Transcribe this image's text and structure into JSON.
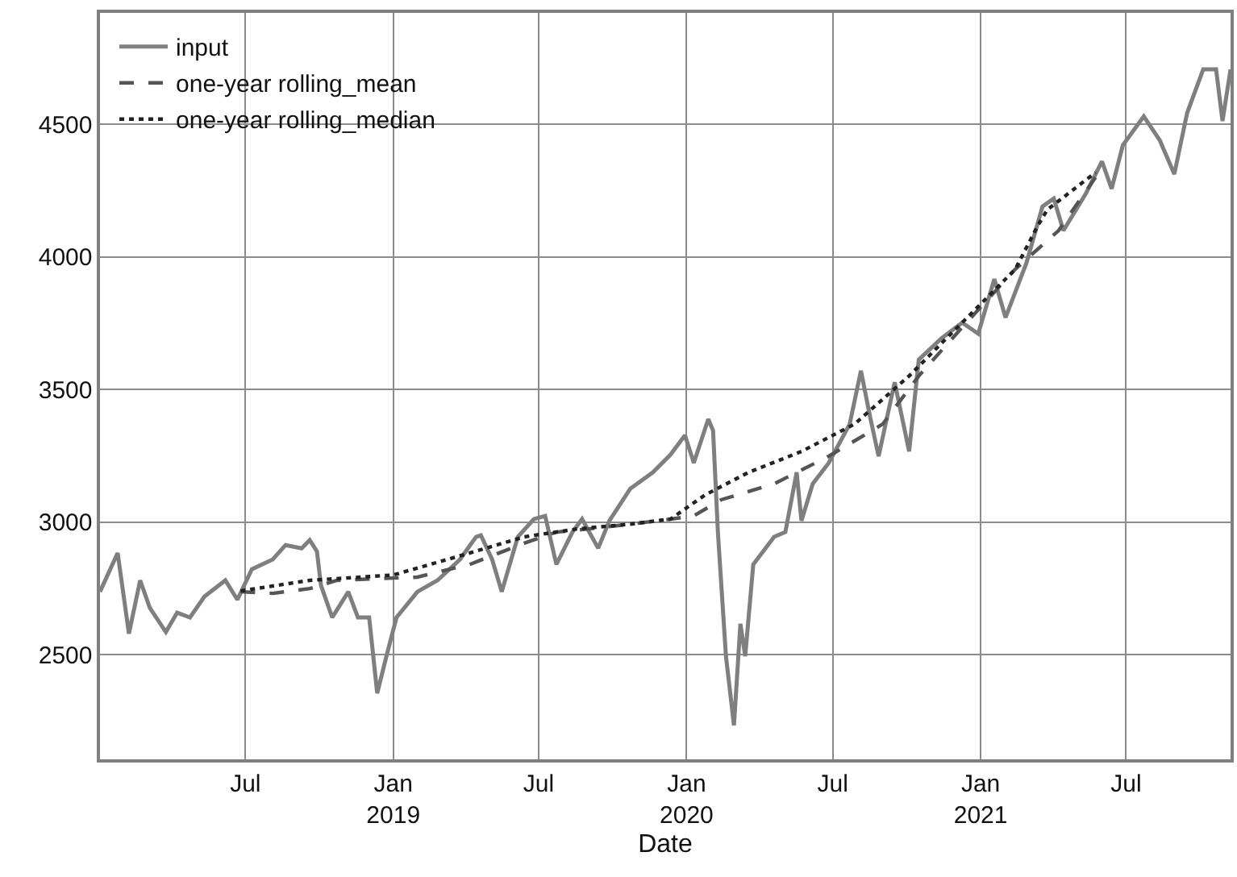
{
  "chart_data": {
    "type": "line",
    "xlabel": "Date",
    "xlim": [
      "2018-01-01",
      "2021-11-08"
    ],
    "ylim": [
      2105,
      4920
    ],
    "xticks": [
      {
        "value": "2018-07-01",
        "label": "Jul"
      },
      {
        "value": "2019-01-01",
        "label": "Jan\n2019"
      },
      {
        "value": "2019-07-01",
        "label": "Jul"
      },
      {
        "value": "2020-01-01",
        "label": "Jan\n2020"
      },
      {
        "value": "2020-07-01",
        "label": "Jul"
      },
      {
        "value": "2021-01-01",
        "label": "Jan\n2021"
      },
      {
        "value": "2021-07-01",
        "label": "Jul"
      }
    ],
    "yticks": [
      2500,
      3000,
      3500,
      4000,
      4500
    ],
    "grid": true,
    "legend": "top left",
    "series": [
      {
        "name": "input",
        "color": "#7f7f7f",
        "line_style": "solid",
        "x": [
          "2018-01-01",
          "2018-01-23",
          "2018-02-06",
          "2018-02-20",
          "2018-03-04",
          "2018-03-24",
          "2018-04-07",
          "2018-04-23",
          "2018-05-11",
          "2018-06-06",
          "2018-06-21",
          "2018-07-09",
          "2018-08-04",
          "2018-08-20",
          "2018-09-09",
          "2018-09-19",
          "2018-09-28",
          "2018-10-03",
          "2018-10-17",
          "2018-11-06",
          "2018-11-18",
          "2018-12-02",
          "2018-12-12",
          "2018-12-22",
          "2019-01-05",
          "2019-01-31",
          "2019-02-25",
          "2019-03-25",
          "2019-04-14",
          "2019-04-20",
          "2019-05-04",
          "2019-05-16",
          "2019-06-05",
          "2019-06-25",
          "2019-07-09",
          "2019-07-23",
          "2019-08-12",
          "2019-08-24",
          "2019-09-13",
          "2019-09-27",
          "2019-10-23",
          "2019-11-20",
          "2019-12-12",
          "2019-12-30",
          "2020-01-10",
          "2020-01-28",
          "2020-02-03",
          "2020-02-09",
          "2020-02-19",
          "2020-02-29",
          "2020-03-08",
          "2020-03-14",
          "2020-03-24",
          "2020-04-19",
          "2020-05-03",
          "2020-05-17",
          "2020-05-23",
          "2020-06-06",
          "2020-06-26",
          "2020-07-22",
          "2020-08-05",
          "2020-08-17",
          "2020-08-27",
          "2020-09-16",
          "2020-10-04",
          "2020-10-16",
          "2020-11-13",
          "2020-12-09",
          "2020-12-29",
          "2021-01-18",
          "2021-02-01",
          "2021-02-27",
          "2021-03-19",
          "2021-04-02",
          "2021-04-14",
          "2021-05-12",
          "2021-06-01",
          "2021-06-13",
          "2021-06-27",
          "2021-07-23",
          "2021-08-12",
          "2021-08-30",
          "2021-09-15",
          "2021-10-05",
          "2021-10-21",
          "2021-10-29",
          "2021-11-08"
        ],
        "values": [
          2737,
          2883,
          2579,
          2780,
          2676,
          2585,
          2658,
          2640,
          2719,
          2780,
          2707,
          2822,
          2859,
          2913,
          2901,
          2932,
          2889,
          2761,
          2640,
          2737,
          2640,
          2640,
          2354,
          2476,
          2640,
          2737,
          2780,
          2859,
          2944,
          2950,
          2859,
          2737,
          2944,
          3011,
          3023,
          2840,
          2962,
          3011,
          2901,
          3005,
          3126,
          3187,
          3254,
          3327,
          3223,
          3388,
          3345,
          2962,
          2494,
          2233,
          2616,
          2494,
          2840,
          2944,
          2962,
          3187,
          3005,
          3144,
          3223,
          3369,
          3570,
          3388,
          3248,
          3527,
          3266,
          3612,
          3692,
          3752,
          3710,
          3916,
          3771,
          3977,
          4190,
          4220,
          4099,
          4239,
          4360,
          4257,
          4421,
          4530,
          4439,
          4312,
          4543,
          4707,
          4707,
          4512,
          4707
        ]
      },
      {
        "name": "one-year rolling_mean",
        "color": "#555555",
        "line_style": "dashed",
        "x": [
          "2018-06-25",
          "2018-08-04",
          "2018-09-19",
          "2018-10-23",
          "2019-01-31",
          "2019-04-06",
          "2019-06-13",
          "2019-07-23",
          "2019-09-01",
          "2019-10-23",
          "2019-12-12",
          "2020-01-10",
          "2020-02-13",
          "2020-04-19",
          "2020-06-26",
          "2020-09-01",
          "2020-10-16",
          "2020-12-09",
          "2021-02-13",
          "2021-04-08",
          "2021-05-24"
        ],
        "values": [
          2737,
          2731,
          2749,
          2780,
          2792,
          2840,
          2920,
          2962,
          2974,
          2992,
          3011,
          3023,
          3084,
          3144,
          3248,
          3369,
          3551,
          3734,
          3953,
          4099,
          4300
        ]
      },
      {
        "name": "one-year rolling_median",
        "color": "#222222",
        "line_style": "dotted",
        "x": [
          "2018-06-25",
          "2018-09-19",
          "2019-01-01",
          "2019-04-06",
          "2019-06-13",
          "2019-08-18",
          "2019-10-23",
          "2019-12-12",
          "2020-01-24",
          "2020-03-18",
          "2020-05-23",
          "2020-07-28",
          "2020-10-04",
          "2020-12-09",
          "2021-02-13",
          "2021-03-13",
          "2021-03-25",
          "2021-05-24"
        ],
        "values": [
          2740,
          2780,
          2800,
          2883,
          2944,
          2974,
          2992,
          3011,
          3102,
          3187,
          3266,
          3369,
          3551,
          3752,
          3953,
          4117,
          4178,
          4318
        ]
      }
    ]
  }
}
